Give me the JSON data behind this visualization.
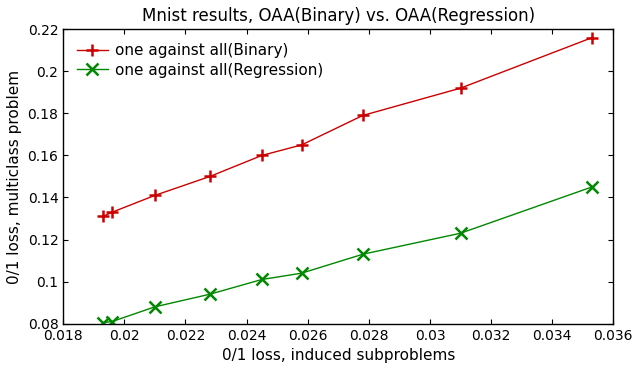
{
  "title": "Mnist results, OAA(Binary) vs. OAA(Regression)",
  "xlabel": "0/1 loss, induced subproblems",
  "ylabel": "0/1 loss, multiclass problem",
  "xlim": [
    0.018,
    0.036
  ],
  "ylim": [
    0.08,
    0.22
  ],
  "xticks": [
    0.018,
    0.02,
    0.022,
    0.024,
    0.026,
    0.028,
    0.03,
    0.032,
    0.034,
    0.036
  ],
  "yticks": [
    0.08,
    0.1,
    0.12,
    0.14,
    0.16,
    0.18,
    0.2,
    0.22
  ],
  "binary_x": [
    0.0193,
    0.0196,
    0.021,
    0.0228,
    0.0245,
    0.0258,
    0.0278,
    0.031,
    0.0353
  ],
  "binary_y": [
    0.131,
    0.133,
    0.141,
    0.15,
    0.16,
    0.165,
    0.179,
    0.192,
    0.216
  ],
  "regression_x": [
    0.0193,
    0.0196,
    0.021,
    0.0228,
    0.0245,
    0.0258,
    0.0278,
    0.031,
    0.0353
  ],
  "regression_y": [
    0.0805,
    0.081,
    0.088,
    0.094,
    0.101,
    0.104,
    0.113,
    0.123,
    0.145
  ],
  "binary_color": "#cc0000",
  "regression_color": "#008800",
  "binary_label": "one against all(Binary)",
  "regression_label": "one against all(Regression)",
  "background_color": "#ffffff",
  "title_fontsize": 12,
  "label_fontsize": 11,
  "legend_fontsize": 11,
  "tick_fontsize": 10,
  "linewidth": 1.0,
  "markersize": 8,
  "markeredgewidth": 1.8
}
